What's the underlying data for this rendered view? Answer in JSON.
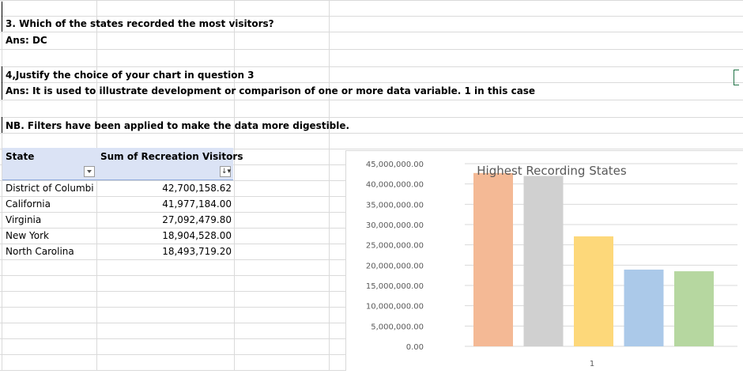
{
  "sheet": {
    "q3": "3. Which of the states recorded the most visitors?",
    "q3_answer": "Ans: DC",
    "q4": "4,Justify the choice of your chart in question 3",
    "q4_answer": "Ans: It is used to illustrate development or comparison of one or more data variable. 1 in this case",
    "note": "NB. Filters have been applied to make the data more digestible."
  },
  "pivot": {
    "col_state": "State",
    "col_sum": "Sum of Recreation Visitors",
    "rows": [
      {
        "state": "District of Columbi",
        "value": "42,700,158.62"
      },
      {
        "state": "California",
        "value": "41,977,184.00"
      },
      {
        "state": "Virginia",
        "value": "27,092,479.80"
      },
      {
        "state": "New York",
        "value": "18,904,528.00"
      },
      {
        "state": "North Carolina",
        "value": "18,493,719.20"
      }
    ]
  },
  "chart_data": {
    "type": "bar",
    "title": "Highest Recording States",
    "categories": [
      "1"
    ],
    "series": [
      {
        "values": [
          42700158.62
        ],
        "color": "#f4b995"
      },
      {
        "values": [
          41977184.0
        ],
        "color": "#d0d0d0"
      },
      {
        "values": [
          27092479.8
        ],
        "color": "#fdd87a"
      },
      {
        "values": [
          18904528.0
        ],
        "color": "#abc9e9"
      },
      {
        "values": [
          18493719.2
        ],
        "color": "#b6d7a0"
      }
    ],
    "ylim": [
      0,
      45000000
    ],
    "yticks": [
      "45,000,000.00",
      "40,000,000.00",
      "35,000,000.00",
      "30,000,000.00",
      "25,000,000.00",
      "20,000,000.00",
      "15,000,000.00",
      "10,000,000.00",
      "5,000,000.00",
      "0.00"
    ],
    "grid": true,
    "legend": "none"
  }
}
